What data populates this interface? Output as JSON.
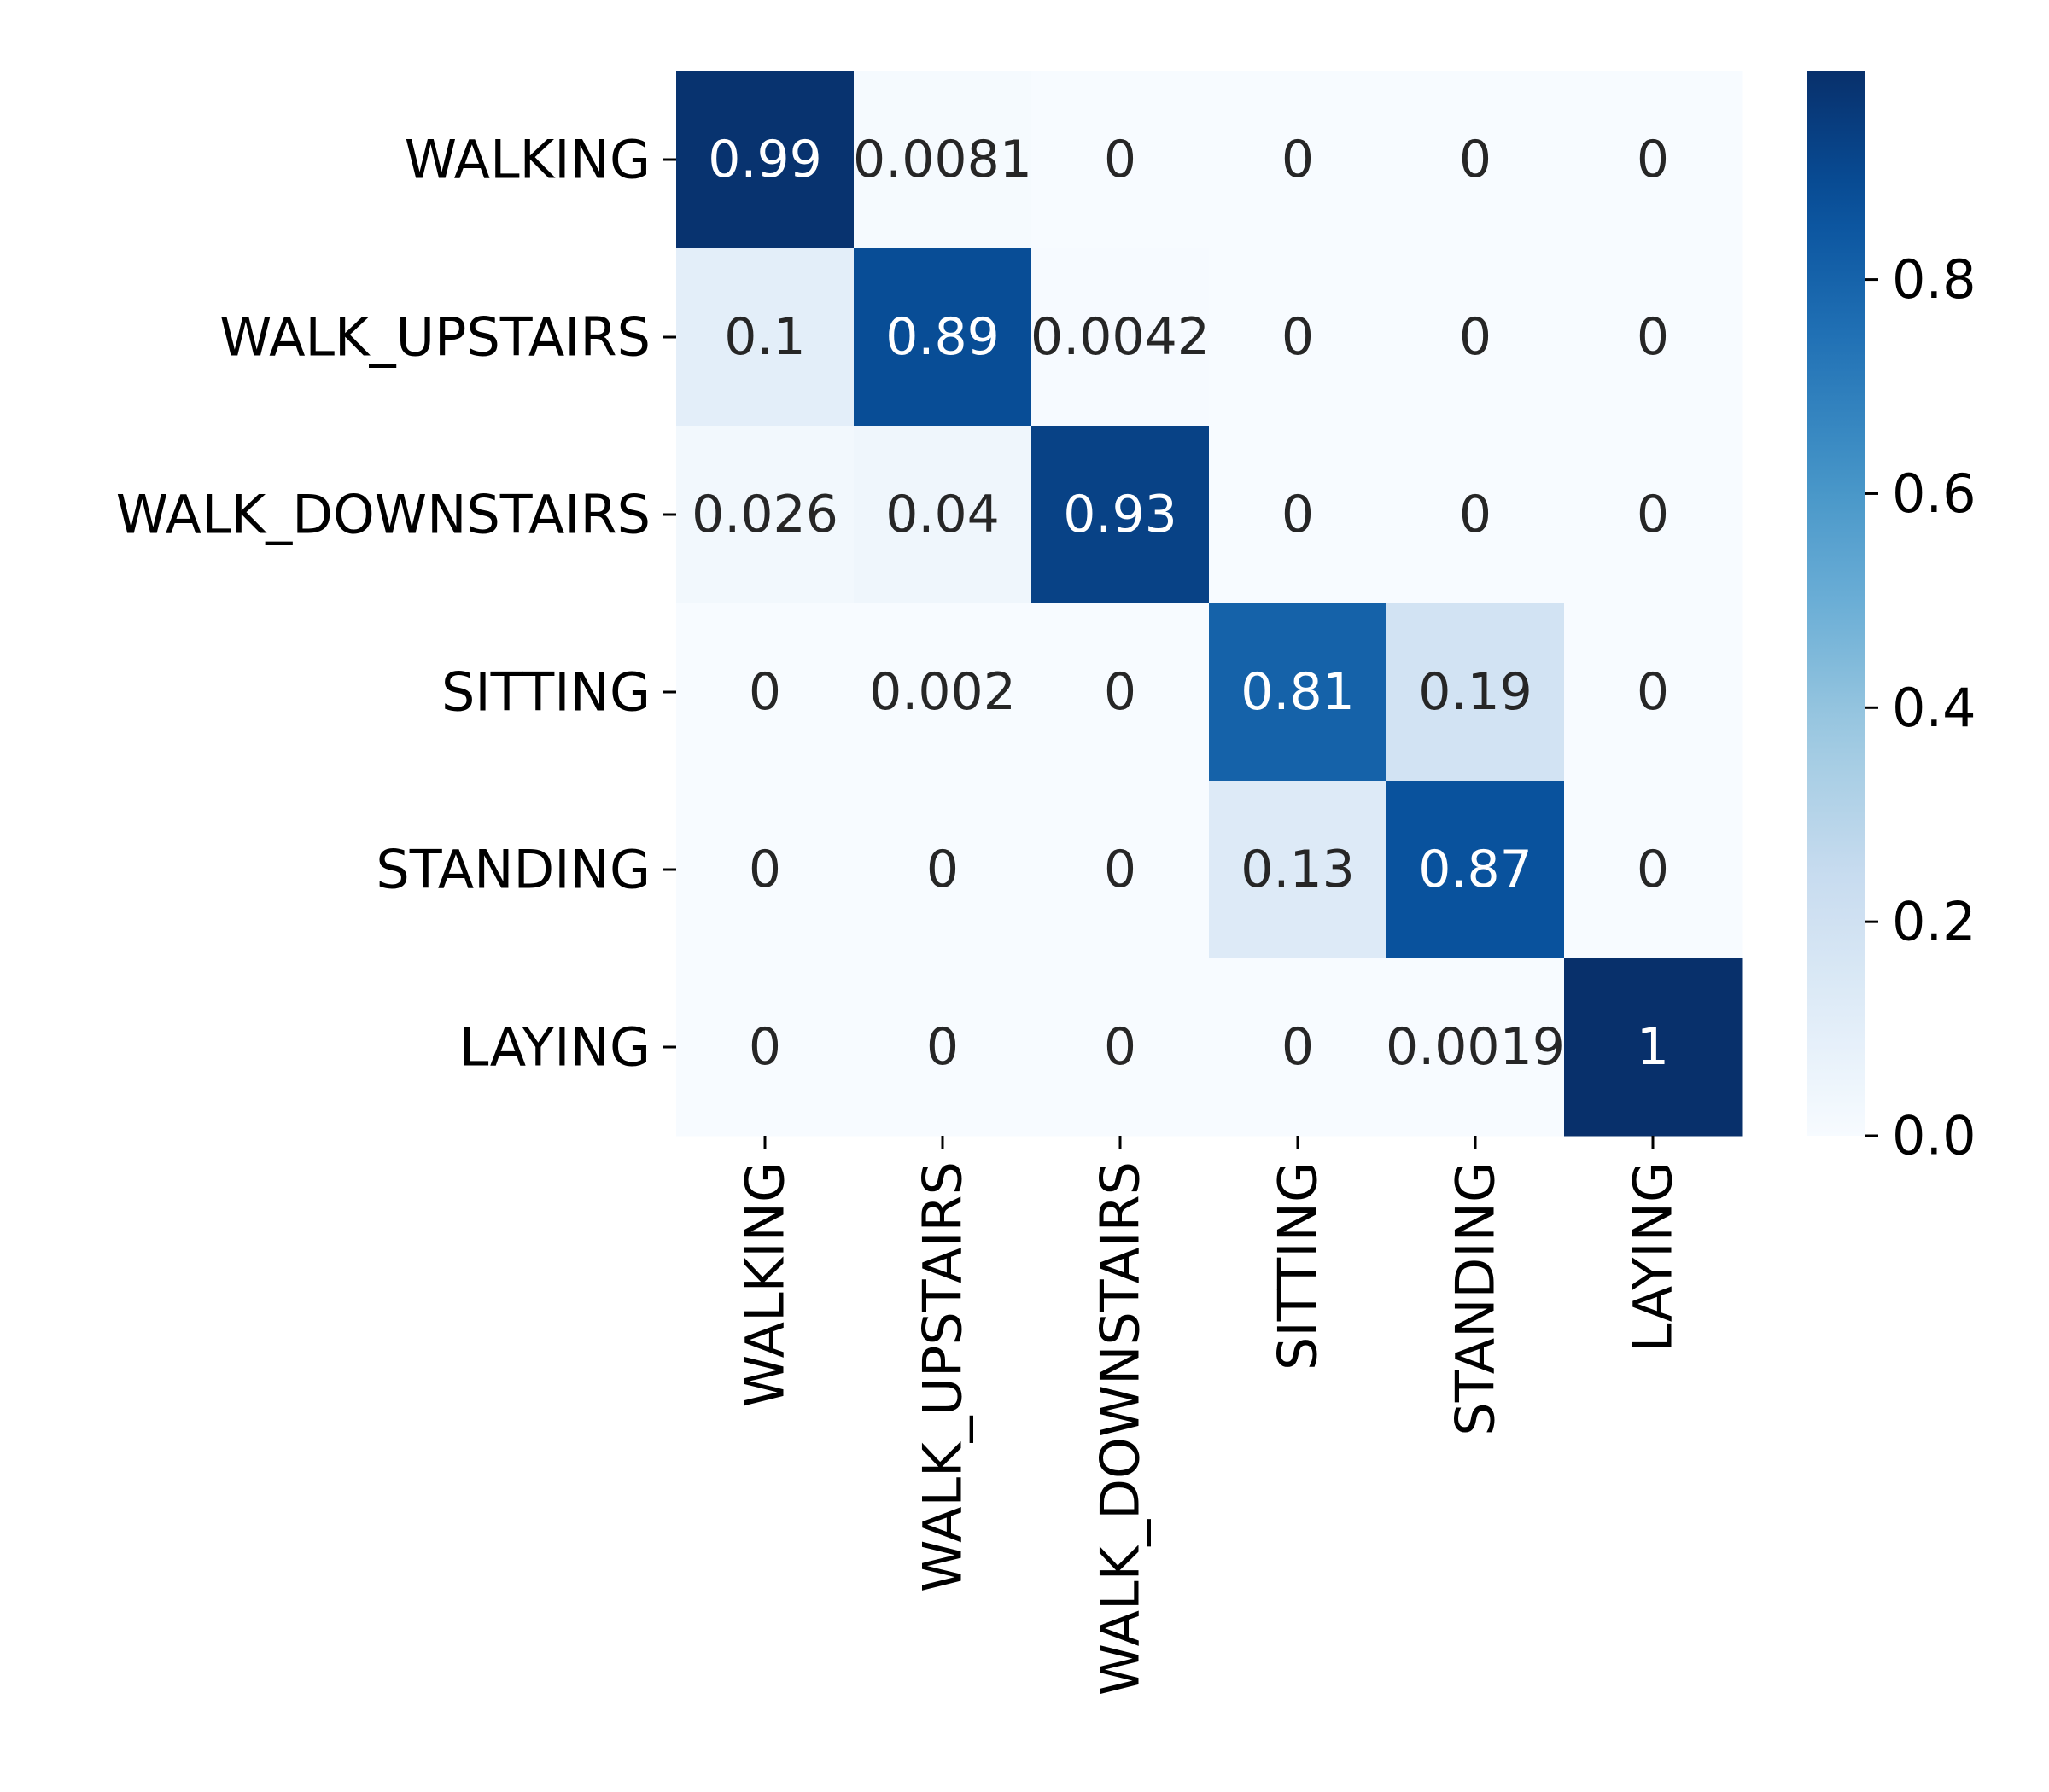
{
  "chart_data": {
    "type": "heatmap",
    "title": "",
    "xlabel": "",
    "ylabel": "",
    "rows": [
      "WALKING",
      "WALK_UPSTAIRS",
      "WALK_DOWNSTAIRS",
      "SITTING",
      "STANDING",
      "LAYING"
    ],
    "columns": [
      "WALKING",
      "WALK_UPSTAIRS",
      "WALK_DOWNSTAIRS",
      "SITTING",
      "STANDING",
      "LAYING"
    ],
    "values": [
      [
        0.99,
        0.0081,
        0,
        0,
        0,
        0
      ],
      [
        0.1,
        0.89,
        0.0042,
        0,
        0,
        0
      ],
      [
        0.026,
        0.04,
        0.93,
        0,
        0,
        0
      ],
      [
        0,
        0.002,
        0,
        0.81,
        0.19,
        0
      ],
      [
        0,
        0,
        0,
        0.13,
        0.87,
        0
      ],
      [
        0,
        0,
        0,
        0,
        0.0019,
        1
      ]
    ],
    "cell_labels": [
      [
        "0.99",
        "0.0081",
        "0",
        "0",
        "0",
        "0"
      ],
      [
        "0.1",
        "0.89",
        "0.0042",
        "0",
        "0",
        "0"
      ],
      [
        "0.026",
        "0.04",
        "0.93",
        "0",
        "0",
        "0"
      ],
      [
        "0",
        "0.002",
        "0",
        "0.81",
        "0.19",
        "0"
      ],
      [
        "0",
        "0",
        "0",
        "0.13",
        "0.87",
        "0"
      ],
      [
        "0",
        "0",
        "0",
        "0",
        "0.0019",
        "1"
      ]
    ],
    "colormap": "Blues",
    "colorbar": {
      "range": [
        0,
        1
      ],
      "ticks": [
        0.0,
        0.2,
        0.4,
        0.6,
        0.8
      ],
      "tick_labels": [
        "0.0",
        "0.2",
        "0.4",
        "0.6",
        "0.8"
      ]
    },
    "x_tick_rotation": "vertical",
    "grid": false,
    "legend": "colorbar-right"
  }
}
